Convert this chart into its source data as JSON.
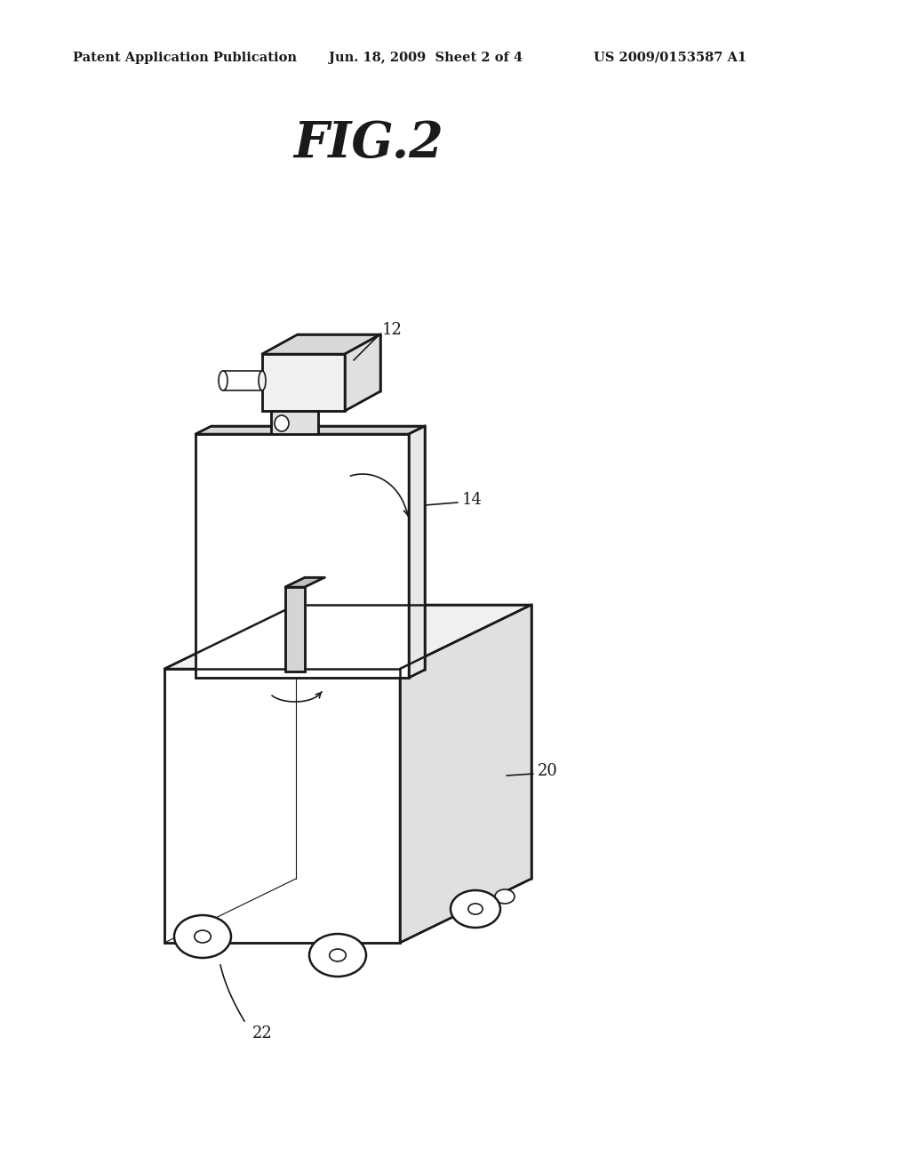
{
  "title": "FIG.2",
  "header_left": "Patent Application Publication",
  "header_center": "Jun. 18, 2009  Sheet 2 of 4",
  "header_right": "US 2009/0153587 A1",
  "label_12": "12",
  "label_14": "14",
  "label_20": "20",
  "label_22": "22",
  "bg_color": "#ffffff",
  "line_color": "#1a1a1a",
  "lw": 1.8,
  "tlw": 1.2
}
